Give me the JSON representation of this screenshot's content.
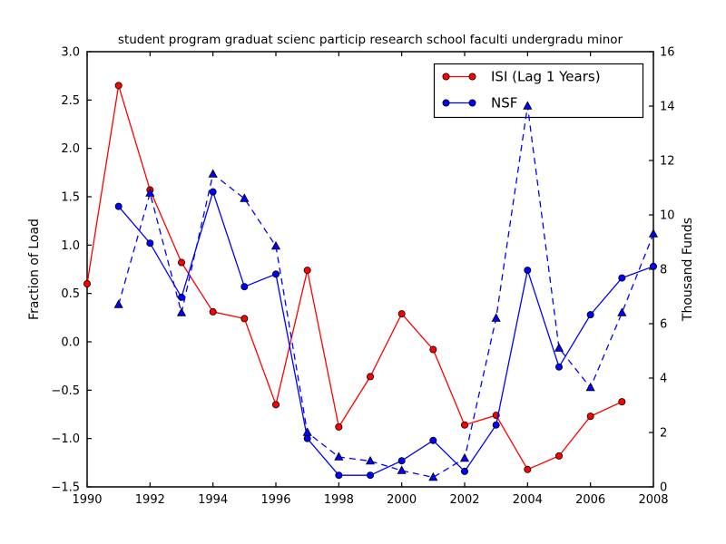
{
  "figure": {
    "background": "#ffffff",
    "spine_color": "#000000"
  },
  "chart_data": {
    "type": "line",
    "title": "student program graduat scienc particip research school faculti undergradu minor",
    "grid": false,
    "legend": {
      "position": "upper right",
      "entries": [
        "ISI (Lag 1 Years)",
        "NSF"
      ]
    },
    "axes": {
      "x": {
        "lim": [
          1990,
          2008
        ],
        "tick_values": [
          1990,
          1992,
          1994,
          1996,
          1998,
          2000,
          2002,
          2004,
          2006,
          2008
        ],
        "tick_labels": [
          "1990",
          "1992",
          "1994",
          "1996",
          "1998",
          "2000",
          "2002",
          "2004",
          "2006",
          "2008"
        ]
      },
      "left": {
        "title": "Fraction of Load",
        "lim": [
          -1.5,
          3.0
        ],
        "tick_values": [
          3.0,
          2.5,
          2.0,
          1.5,
          1.0,
          0.5,
          0.0,
          -0.5,
          -1.0,
          -1.5
        ],
        "tick_labels": [
          "3.0",
          "2.5",
          "2.0",
          "1.5",
          "1.0",
          "0.5",
          "0.0",
          "−0.5",
          "−1.0",
          "−1.5"
        ]
      },
      "right": {
        "title": "Thousand Funds",
        "lim": [
          0,
          16
        ],
        "tick_values": [
          16,
          14,
          12,
          10,
          8,
          6,
          4,
          2,
          0
        ],
        "tick_labels": [
          "16",
          "14",
          "12",
          "10",
          "8",
          "6",
          "4",
          "2",
          "0"
        ]
      }
    },
    "series": [
      {
        "id": "isi-lag-1-years",
        "name": "ISI (Lag 1 Years)",
        "color": "#ff0000",
        "line_style": "solid",
        "marker": "circle",
        "axis": "left",
        "in_legend": true,
        "x": [
          1990,
          1991,
          1992,
          1993,
          1994,
          1995,
          1996,
          1997,
          1998,
          1999,
          2000,
          2001,
          2002,
          2003,
          2004,
          2005,
          2006,
          2007
        ],
        "y": [
          0.6,
          2.65,
          1.57,
          0.82,
          0.31,
          0.24,
          -0.65,
          0.74,
          -0.88,
          -0.36,
          0.29,
          -0.08,
          -0.86,
          -0.76,
          -1.32,
          -1.18,
          -0.77,
          -0.62
        ]
      },
      {
        "id": "nsf-solid",
        "name": "NSF",
        "color": "#0000ff",
        "line_style": "solid",
        "marker": "circle",
        "axis": "left",
        "in_legend": true,
        "x": [
          1991,
          1992,
          1993,
          1994,
          1995,
          1996,
          1997,
          1998,
          1999,
          2000,
          2001,
          2002,
          2003,
          2004,
          2005,
          2006,
          2007,
          2008
        ],
        "y": [
          1.4,
          1.02,
          0.46,
          1.55,
          0.57,
          0.7,
          -1.0,
          -1.38,
          -1.38,
          -1.23,
          -1.02,
          -1.34,
          -0.86,
          0.74,
          -0.26,
          0.28,
          0.66,
          0.78
        ]
      },
      {
        "id": "nsf-dashed-right-axis",
        "name": "",
        "color": "#0000ff",
        "line_style": "dashed",
        "marker": "triangle",
        "axis": "right",
        "in_legend": false,
        "x": [
          1991,
          1992,
          1993,
          1994,
          1995,
          1996,
          1997,
          1998,
          1999,
          2000,
          2001,
          2002,
          2003,
          2004,
          2005,
          2006,
          2007,
          2008
        ],
        "y": [
          6.7,
          10.8,
          6.4,
          11.5,
          10.6,
          8.85,
          2.0,
          1.1,
          0.95,
          0.6,
          0.35,
          1.05,
          6.2,
          14.0,
          5.1,
          3.65,
          6.4,
          9.3
        ]
      }
    ]
  }
}
